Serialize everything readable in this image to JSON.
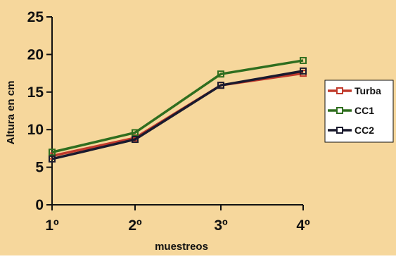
{
  "chart_data": {
    "type": "line",
    "title": "",
    "xlabel": "muestreos",
    "ylabel": "Altura en cm",
    "categories": [
      "1º",
      "2º",
      "3º",
      "4º"
    ],
    "ylim": [
      0,
      25
    ],
    "yticks": [
      0,
      5,
      10,
      15,
      20,
      25
    ],
    "grid": false,
    "legend": "right",
    "background_color": "#f6d79c",
    "series": [
      {
        "name": "Turba",
        "values": [
          6.5,
          8.9,
          15.9,
          17.5
        ],
        "color": "#c0392b"
      },
      {
        "name": "CC1",
        "values": [
          7.0,
          9.6,
          17.4,
          19.2
        ],
        "color": "#2f6e1f"
      },
      {
        "name": "CC2",
        "values": [
          6.1,
          8.7,
          15.9,
          17.8
        ],
        "color": "#1a1a2e"
      }
    ]
  }
}
